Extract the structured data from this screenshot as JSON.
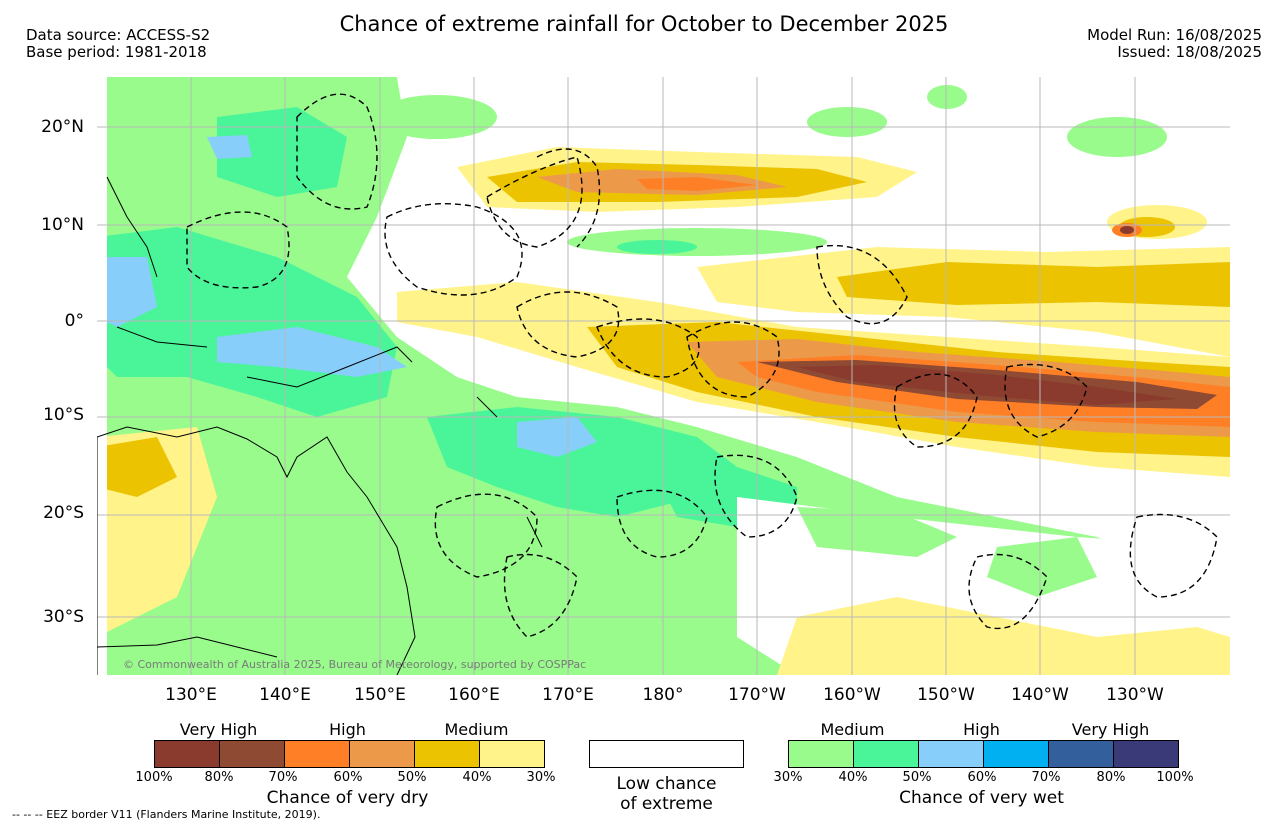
{
  "header": {
    "title": "Chance of extreme rainfall for October to December 2025",
    "data_source": "Data source: ACCESS-S2",
    "base_period": "Base period: 1981-2018",
    "model_run": "Model Run: 16/08/2025",
    "issued": "Issued: 18/08/2025"
  },
  "map": {
    "copyright": "© Commonwealth of Australia 2025, Bureau of Meteorology, supported by COSPPac",
    "lat_labels": [
      "20°N",
      "10°N",
      "0°",
      "10°S",
      "20°S",
      "30°S"
    ],
    "lon_labels": [
      "130°E",
      "140°E",
      "150°E",
      "160°E",
      "170°E",
      "180°",
      "170°W",
      "160°W",
      "150°W",
      "140°W",
      "130°W"
    ]
  },
  "legend_dry": {
    "categories": [
      "Very High",
      "High",
      "Medium"
    ],
    "colors": [
      "#8b3a2e",
      "#8e4a32",
      "#ff7f27",
      "#ec9a4a",
      "#ebc300",
      "#fff38a"
    ],
    "ticks": [
      "100%",
      "80%",
      "70%",
      "60%",
      "50%",
      "40%",
      "30%"
    ],
    "title": "Chance of very dry"
  },
  "legend_low": {
    "label_line1": "Low chance",
    "label_line2": "of extreme",
    "color": "#ffffff"
  },
  "legend_wet": {
    "categories": [
      "Medium",
      "High",
      "Very High"
    ],
    "colors": [
      "#98fb8c",
      "#4af59a",
      "#87cefa",
      "#00b0f0",
      "#33609c",
      "#3b3a78"
    ],
    "ticks": [
      "30%",
      "40%",
      "50%",
      "60%",
      "70%",
      "80%",
      "100%"
    ],
    "title": "Chance of very wet"
  },
  "footer": {
    "eez_note": "-- -- -- EEZ border V11 (Flanders Marine Institute, 2019)."
  }
}
